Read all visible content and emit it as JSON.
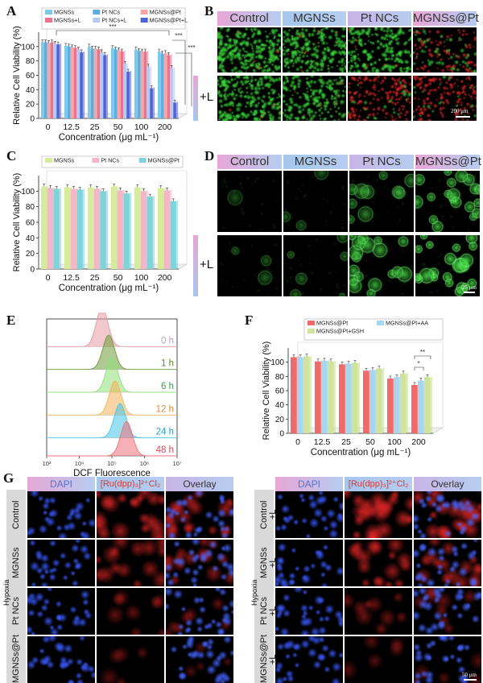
{
  "panels": {
    "A": "A",
    "B": "B",
    "C": "C",
    "D": "D",
    "E": "E",
    "F": "F",
    "G": "G"
  },
  "colors": {
    "mgnss": "#7fc8e8",
    "ptncs": "#5aaee0",
    "mgnsspt": "#f4a7a7",
    "mgnssL": "#e9738f",
    "ptncsL": "#b7c9f0",
    "mgnssptL": "#4e63d8",
    "c_mgnss": "#d6ec9c",
    "c_ptncs": "#f5b7c6",
    "c_mgnsspt": "#7fd3d9",
    "f_mgnsspt": "#ef6b6b",
    "f_aa": "#a8d6ee",
    "f_gsh": "#cfe39a",
    "hdr_pink": "#e7a6d6",
    "hdr_blue": "#a6c6ec",
    "hdr_violet": "#c9b4e6"
  },
  "chart_a": {
    "type": "bar",
    "ylabel": "Relative Cell Viability (%)",
    "xlabel": "Concentration (μg mL⁻¹)",
    "categories": [
      "0",
      "12.5",
      "25",
      "50",
      "100",
      "200"
    ],
    "yticks": [
      "0",
      "20",
      "40",
      "60",
      "80",
      "100"
    ],
    "ylim": [
      0,
      120
    ],
    "series": [
      {
        "name": "MGNSs",
        "values": [
          106,
          101,
          100,
          98,
          96,
          93
        ]
      },
      {
        "name": "Pt NCs",
        "values": [
          106,
          100,
          97,
          96,
          94,
          90
        ]
      },
      {
        "name": "MGNSs@Pt",
        "values": [
          105,
          99,
          97,
          95,
          93,
          91
        ]
      },
      {
        "name": "MGNSs+L",
        "values": [
          106,
          98,
          96,
          93,
          93,
          88
        ]
      },
      {
        "name": "Pt NCs+L",
        "values": [
          104,
          96,
          92,
          76,
          72,
          70
        ]
      },
      {
        "name": "MGNSs@Pt+L",
        "values": [
          103,
          92,
          88,
          65,
          42,
          22
        ]
      }
    ],
    "sig": [
      "***",
      "***",
      "***"
    ]
  },
  "chart_c": {
    "type": "bar",
    "ylabel": "Relative Cell Viability (%)",
    "xlabel": "Concentration (μg mL⁻¹)",
    "categories": [
      "0",
      "12.5",
      "25",
      "50",
      "100",
      "200"
    ],
    "yticks": [
      "0",
      "20",
      "40",
      "60",
      "80",
      "100"
    ],
    "ylim": [
      0,
      120
    ],
    "series": [
      {
        "name": "MGNSs",
        "values": [
          106,
          105,
          105,
          106,
          105,
          104
        ]
      },
      {
        "name": "Pt NCs",
        "values": [
          104,
          103,
          103,
          101,
          100,
          101
        ]
      },
      {
        "name": "MGNSs@Pt",
        "values": [
          103,
          102,
          100,
          97,
          93,
          87
        ]
      }
    ]
  },
  "chart_f": {
    "type": "bar",
    "ylabel": "Relative Cell Viability (%)",
    "xlabel": "Concentration (μg mL⁻¹)",
    "categories": [
      "0",
      "12.5",
      "25",
      "50",
      "100",
      "200"
    ],
    "yticks": [
      "0",
      "20",
      "40",
      "60",
      "80",
      "100"
    ],
    "ylim": [
      0,
      120
    ],
    "series": [
      {
        "name": "MGNSs@Pt",
        "values": [
          107,
          101,
          97,
          88,
          77,
          68
        ]
      },
      {
        "name": "MGNSs@Pt+AA",
        "values": [
          107,
          102,
          98,
          89,
          79,
          74
        ]
      },
      {
        "name": "MGNSs@Pt+GSH",
        "values": [
          108,
          101,
          99,
          91,
          84,
          79
        ]
      }
    ],
    "sig": [
      "**",
      "*"
    ]
  },
  "chart_e": {
    "type": "area",
    "xlabel": "DCF Fluorescence",
    "xticks": [
      "10³",
      "10⁴",
      "10⁵",
      "10⁶",
      "10⁷"
    ],
    "series": [
      {
        "name": "0 h",
        "peak": 4.7,
        "color": "#e59aa4",
        "labelColor": "#b9a0c8"
      },
      {
        "name": "1 h",
        "peak": 4.9,
        "color": "#6f9a3a",
        "labelColor": "#5b8a2a"
      },
      {
        "name": "6 h",
        "peak": 5.0,
        "color": "#8fe07a",
        "labelColor": "#3aa54a"
      },
      {
        "name": "12 h",
        "peak": 5.1,
        "color": "#f3b35a",
        "labelColor": "#e08a30"
      },
      {
        "name": "24 h",
        "peak": 5.25,
        "color": "#45c4e6",
        "labelColor": "#2e9fd0"
      },
      {
        "name": "48 h",
        "peak": 5.45,
        "color": "#f0707a",
        "labelColor": "#d84a55"
      }
    ]
  },
  "panel_b": {
    "headers": [
      "Control",
      "MGNSs",
      "Pt NCs",
      "MGNSs@Pt"
    ],
    "row2": "+L",
    "scale": "200 μm"
  },
  "panel_d": {
    "headers": [
      "Control",
      "MGNSs",
      "Pt NCs",
      "MGNSs@Pt"
    ],
    "row2": "+L",
    "scale": "25 μm"
  },
  "panel_g": {
    "headers": [
      "DAPI",
      "[Ru(dpp)₃]²⁺Cl₂",
      "Overlay"
    ],
    "side": "Hypoxia",
    "rows_left": [
      "Control",
      "MGNSs",
      "Pt NCs",
      "MGNSs@Pt"
    ],
    "rows_right": [
      "Control",
      "MGNSs",
      "Pt NCs",
      "MGNSs@Pt"
    ],
    "plusL": "+L",
    "scale": "50 μm"
  }
}
